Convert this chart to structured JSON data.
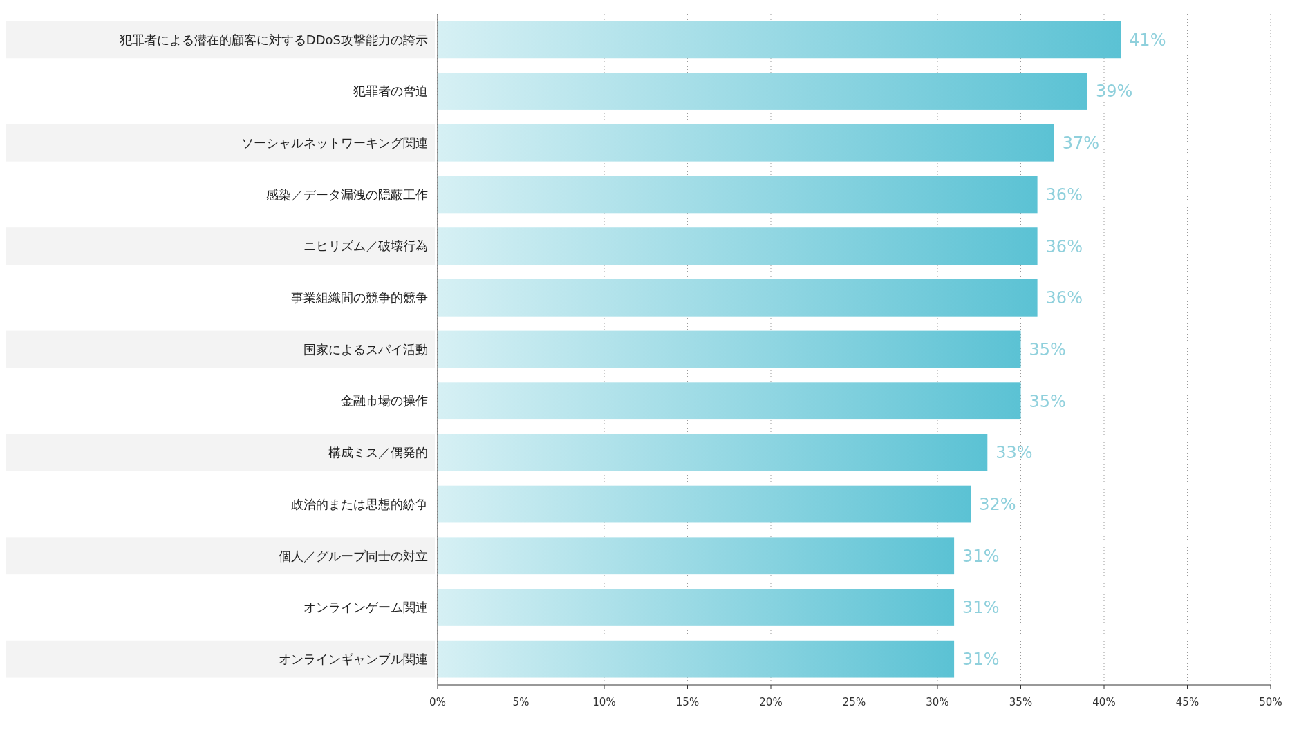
{
  "chart_data": {
    "type": "bar",
    "orientation": "horizontal",
    "categories": [
      "犯罪者による潜在的顧客に対するDDoS攻撃能力の誇示",
      "犯罪者の脅迫",
      "ソーシャルネットワーキング関連",
      "感染／データ漏洩の隠蔽工作",
      "ニヒリズム／破壊行為",
      "事業組織間の競争的競争",
      "国家によるスパイ活動",
      "金融市場の操作",
      "構成ミス／偶発的",
      "政治的または思想的紛争",
      "個人／グループ同士の対立",
      "オンラインゲーム関連",
      "オンラインギャンブル関連"
    ],
    "values": [
      41,
      39,
      37,
      36,
      36,
      36,
      35,
      35,
      33,
      32,
      31,
      31,
      31
    ],
    "value_labels": [
      "41%",
      "39%",
      "37%",
      "36%",
      "36%",
      "36%",
      "35%",
      "35%",
      "33%",
      "32%",
      "31%",
      "31%",
      "31%"
    ],
    "color": "#5bc2d4",
    "xlim": [
      0,
      50
    ],
    "xticks": [
      {
        "value": 0,
        "label": "0%"
      },
      {
        "value": 5,
        "label": "5%"
      },
      {
        "value": 10,
        "label": "10%"
      },
      {
        "value": 15,
        "label": "15%"
      },
      {
        "value": 20,
        "label": "20%"
      },
      {
        "value": 25,
        "label": "25%"
      },
      {
        "value": 30,
        "label": "30%"
      },
      {
        "value": 35,
        "label": "35%"
      },
      {
        "value": 40,
        "label": "40%"
      },
      {
        "value": 45,
        "label": "45%"
      },
      {
        "value": 50,
        "label": "50%"
      }
    ],
    "grid": "x"
  }
}
